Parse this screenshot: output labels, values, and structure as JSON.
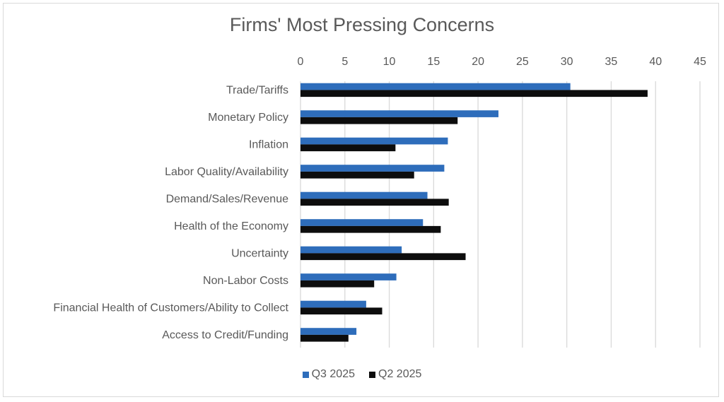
{
  "chart_data": {
    "type": "bar",
    "orientation": "horizontal",
    "title": "Firms' Most Pressing Concerns",
    "xlabel": "",
    "ylabel": "",
    "xlim": [
      0,
      45
    ],
    "x_ticks": [
      0,
      5,
      10,
      15,
      20,
      25,
      30,
      35,
      40,
      45
    ],
    "x_axis_position": "top",
    "grid": true,
    "legend_position": "bottom",
    "categories": [
      "Trade/Tariffs",
      "Monetary Policy",
      "Inflation",
      "Labor Quality/Availability",
      "Demand/Sales/Revenue",
      "Health of the Economy",
      "Uncertainty",
      "Non-Labor Costs",
      "Financial Health of Customers/Ability to Collect",
      "Access to Credit/Funding"
    ],
    "series": [
      {
        "name": "Q3 2025",
        "color": "#2e6dbb",
        "values": [
          30.4,
          22.3,
          16.6,
          16.2,
          14.3,
          13.8,
          11.4,
          10.8,
          7.4,
          6.3
        ]
      },
      {
        "name": "Q2 2025",
        "color": "#0d0d0d",
        "values": [
          39.1,
          17.7,
          10.7,
          12.8,
          16.7,
          15.8,
          18.6,
          8.3,
          9.2,
          5.4
        ]
      }
    ]
  }
}
